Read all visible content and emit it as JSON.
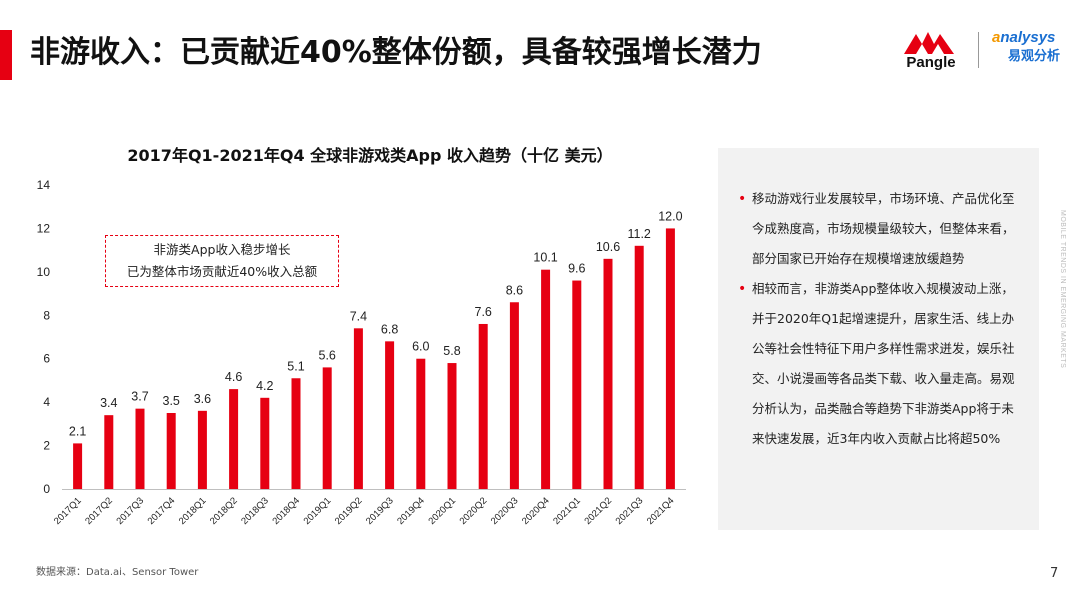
{
  "header": {
    "title": "非游收入：已贡献近40%整体份额，具备较强增长潜力",
    "accent_color": "#e60012"
  },
  "logos": {
    "pangle": "Pangle",
    "analysys_en_prefix": "a",
    "analysys_en_rest": "nalysys",
    "analysys_cn": "易观分析"
  },
  "chart_data": {
    "type": "bar",
    "title": "2017年Q1-2021年Q4  全球非游戏类App  收入趋势（十亿 美元）",
    "categories": [
      "2017Q1",
      "2017Q2",
      "2017Q3",
      "2017Q4",
      "2018Q1",
      "2018Q2",
      "2018Q3",
      "2018Q4",
      "2019Q1",
      "2019Q2",
      "2019Q3",
      "2019Q4",
      "2020Q1",
      "2020Q2",
      "2020Q3",
      "2020Q4",
      "2021Q1",
      "2021Q2",
      "2021Q3",
      "2021Q4"
    ],
    "values": [
      2.1,
      3.4,
      3.7,
      3.5,
      3.6,
      4.6,
      4.2,
      5.1,
      5.6,
      7.4,
      6.8,
      6.0,
      5.8,
      7.6,
      8.6,
      10.1,
      9.6,
      10.6,
      11.2,
      12.0
    ],
    "value_labels": [
      "2.1",
      "3.4",
      "3.7",
      "3.5",
      "3.6",
      "4.6",
      "4.2",
      "5.1",
      "5.6",
      "7.4",
      "6.8",
      "6.0",
      "5.8",
      "7.6",
      "8.6",
      "10.1",
      "9.6",
      "10.6",
      "11.2",
      "12.0"
    ],
    "yticks": [
      "0",
      "2",
      "4",
      "6",
      "8",
      "10",
      "12",
      "14"
    ],
    "ylim": [
      0,
      14
    ],
    "xlabel": "",
    "ylabel": "",
    "grid": false,
    "legend": "none",
    "bar_color": "#e60012"
  },
  "callout": {
    "line1": "非游类App收入稳步增长",
    "line2": "已为整体市场贡献近40%收入总额"
  },
  "side_panel": {
    "bullets": [
      "移动游戏行业发展较早，市场环境、产品优化至今成熟度高，市场规模量级较大，但整体来看，部分国家已开始存在规模增速放缓趋势",
      "相较而言，非游类App整体收入规模波动上涨，并于2020年Q1起增速提升，居家生活、线上办公等社会性特征下用户多样性需求迸发，娱乐社交、小说漫画等各品类下载、收入量走高。易观分析认为，品类融合等趋势下非游类App将于未来快速发展，近3年内收入贡献占比将超50%"
    ]
  },
  "watermark": "MOBILE TRENDS IN EMERGING MARKETS",
  "footer": {
    "source": "数据来源：Data.ai、Sensor Tower",
    "page_number": "7"
  }
}
